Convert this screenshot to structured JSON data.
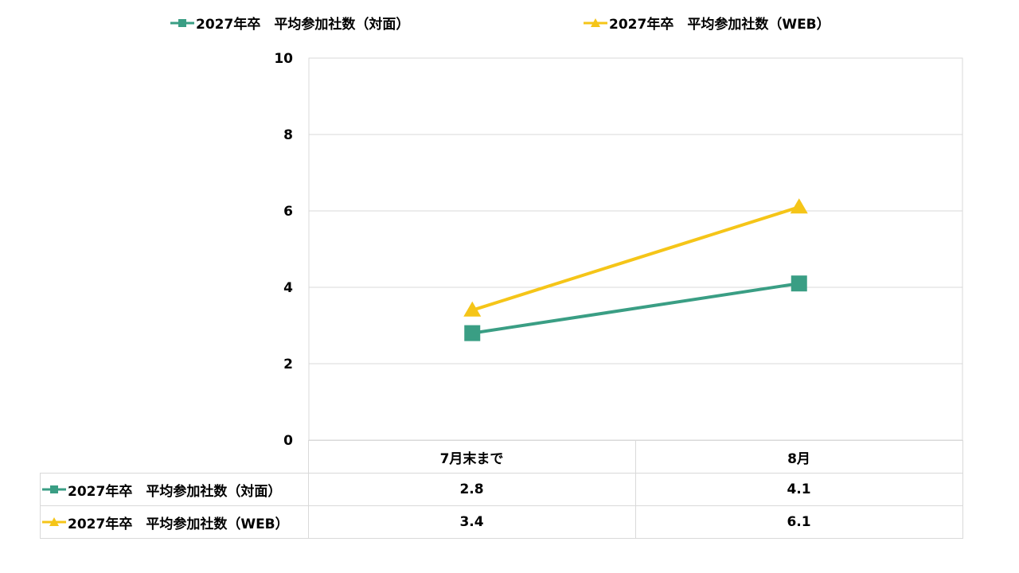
{
  "chart_data": {
    "type": "line",
    "categories": [
      "7月末まで",
      "8月"
    ],
    "series": [
      {
        "name": "2027年卒　平均参加社数（対面）",
        "values": [
          2.8,
          4.1
        ],
        "color": "#3a9e84",
        "marker": "square"
      },
      {
        "name": "2027年卒　平均参加社数（WEB）",
        "values": [
          3.4,
          6.1
        ],
        "color": "#f5c518",
        "marker": "triangle"
      }
    ],
    "ylim": [
      0,
      10
    ],
    "yticks": [
      "0",
      "2",
      "4",
      "6",
      "8",
      "10"
    ],
    "legend": "top",
    "grid": true,
    "data_table": true,
    "data_labels": [
      [
        "2.8",
        "4.1"
      ],
      [
        "3.4",
        "6.1"
      ]
    ]
  }
}
